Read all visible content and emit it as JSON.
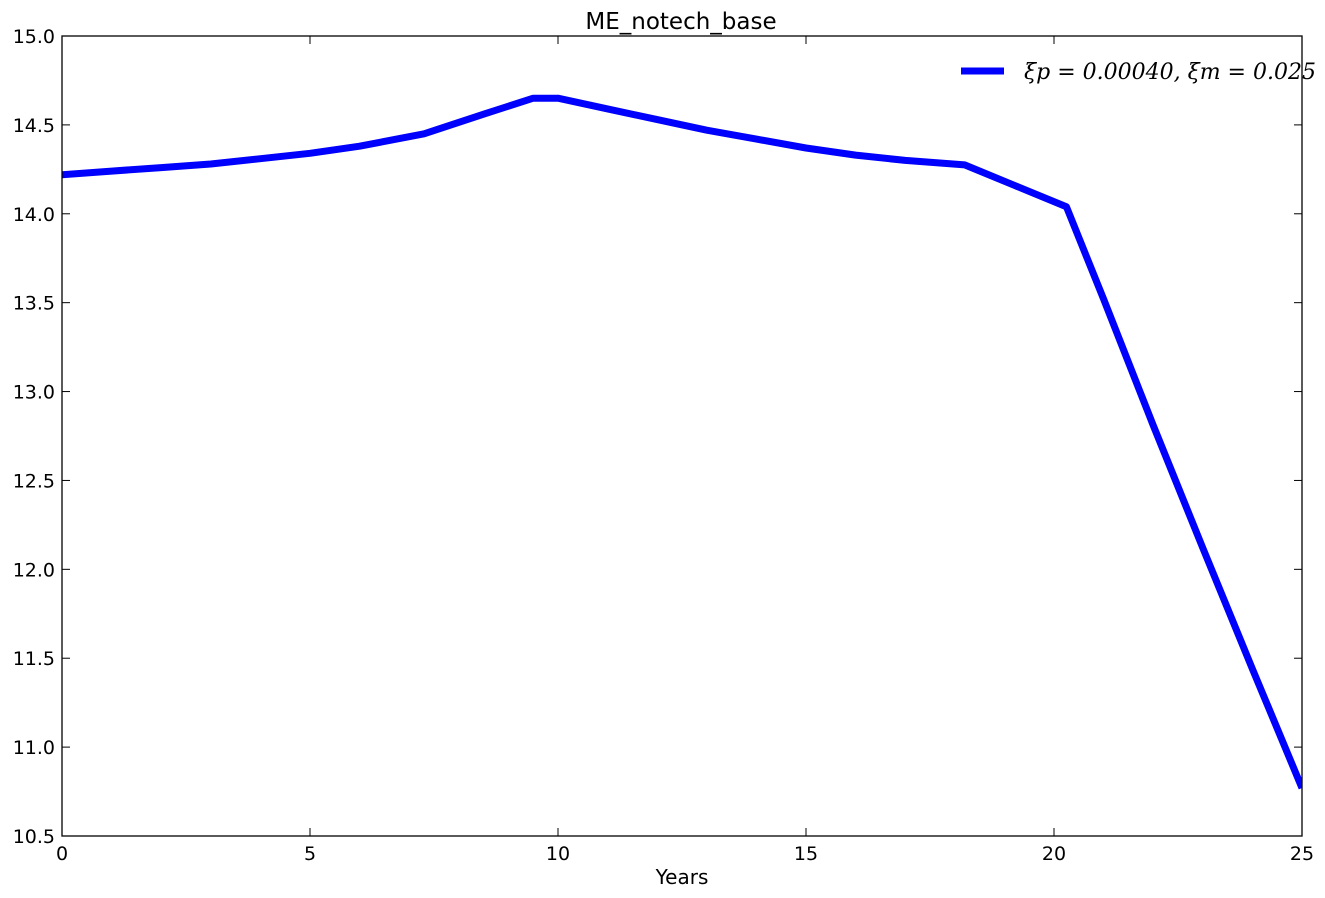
{
  "chart_data": {
    "type": "line",
    "title": "ME_notech_base",
    "xlabel": "Years",
    "ylabel": "",
    "xlim": [
      0,
      25
    ],
    "ylim": [
      10.5,
      15.0
    ],
    "xticks": [
      0,
      5,
      10,
      15,
      20,
      25
    ],
    "xtick_labels": [
      "0",
      "5",
      "10",
      "15",
      "20",
      "25"
    ],
    "yticks": [
      10.5,
      11.0,
      11.5,
      12.0,
      12.5,
      13.0,
      13.5,
      14.0,
      14.5,
      15.0
    ],
    "ytick_labels": [
      "10.5",
      "11.0",
      "11.5",
      "12.0",
      "12.5",
      "13.0",
      "13.5",
      "14.0",
      "14.5",
      "15.0"
    ],
    "grid": false,
    "legend_position": "top-right",
    "series": [
      {
        "name": "ξp = 0.00040, ξm = 0.025",
        "color": "#0000ff",
        "x": [
          0,
          1,
          2,
          3,
          4,
          5,
          6,
          7.3,
          8.5,
          9.5,
          10,
          11,
          12,
          13,
          14,
          15,
          16,
          17,
          18.2,
          19.2,
          20.25,
          21,
          22,
          23,
          24,
          25
        ],
        "y": [
          14.22,
          14.24,
          14.26,
          14.28,
          14.31,
          14.34,
          14.38,
          14.45,
          14.56,
          14.65,
          14.65,
          14.59,
          14.53,
          14.47,
          14.42,
          14.37,
          14.33,
          14.3,
          14.275,
          14.16,
          14.04,
          13.52,
          12.81,
          12.12,
          11.44,
          10.77
        ]
      }
    ]
  }
}
